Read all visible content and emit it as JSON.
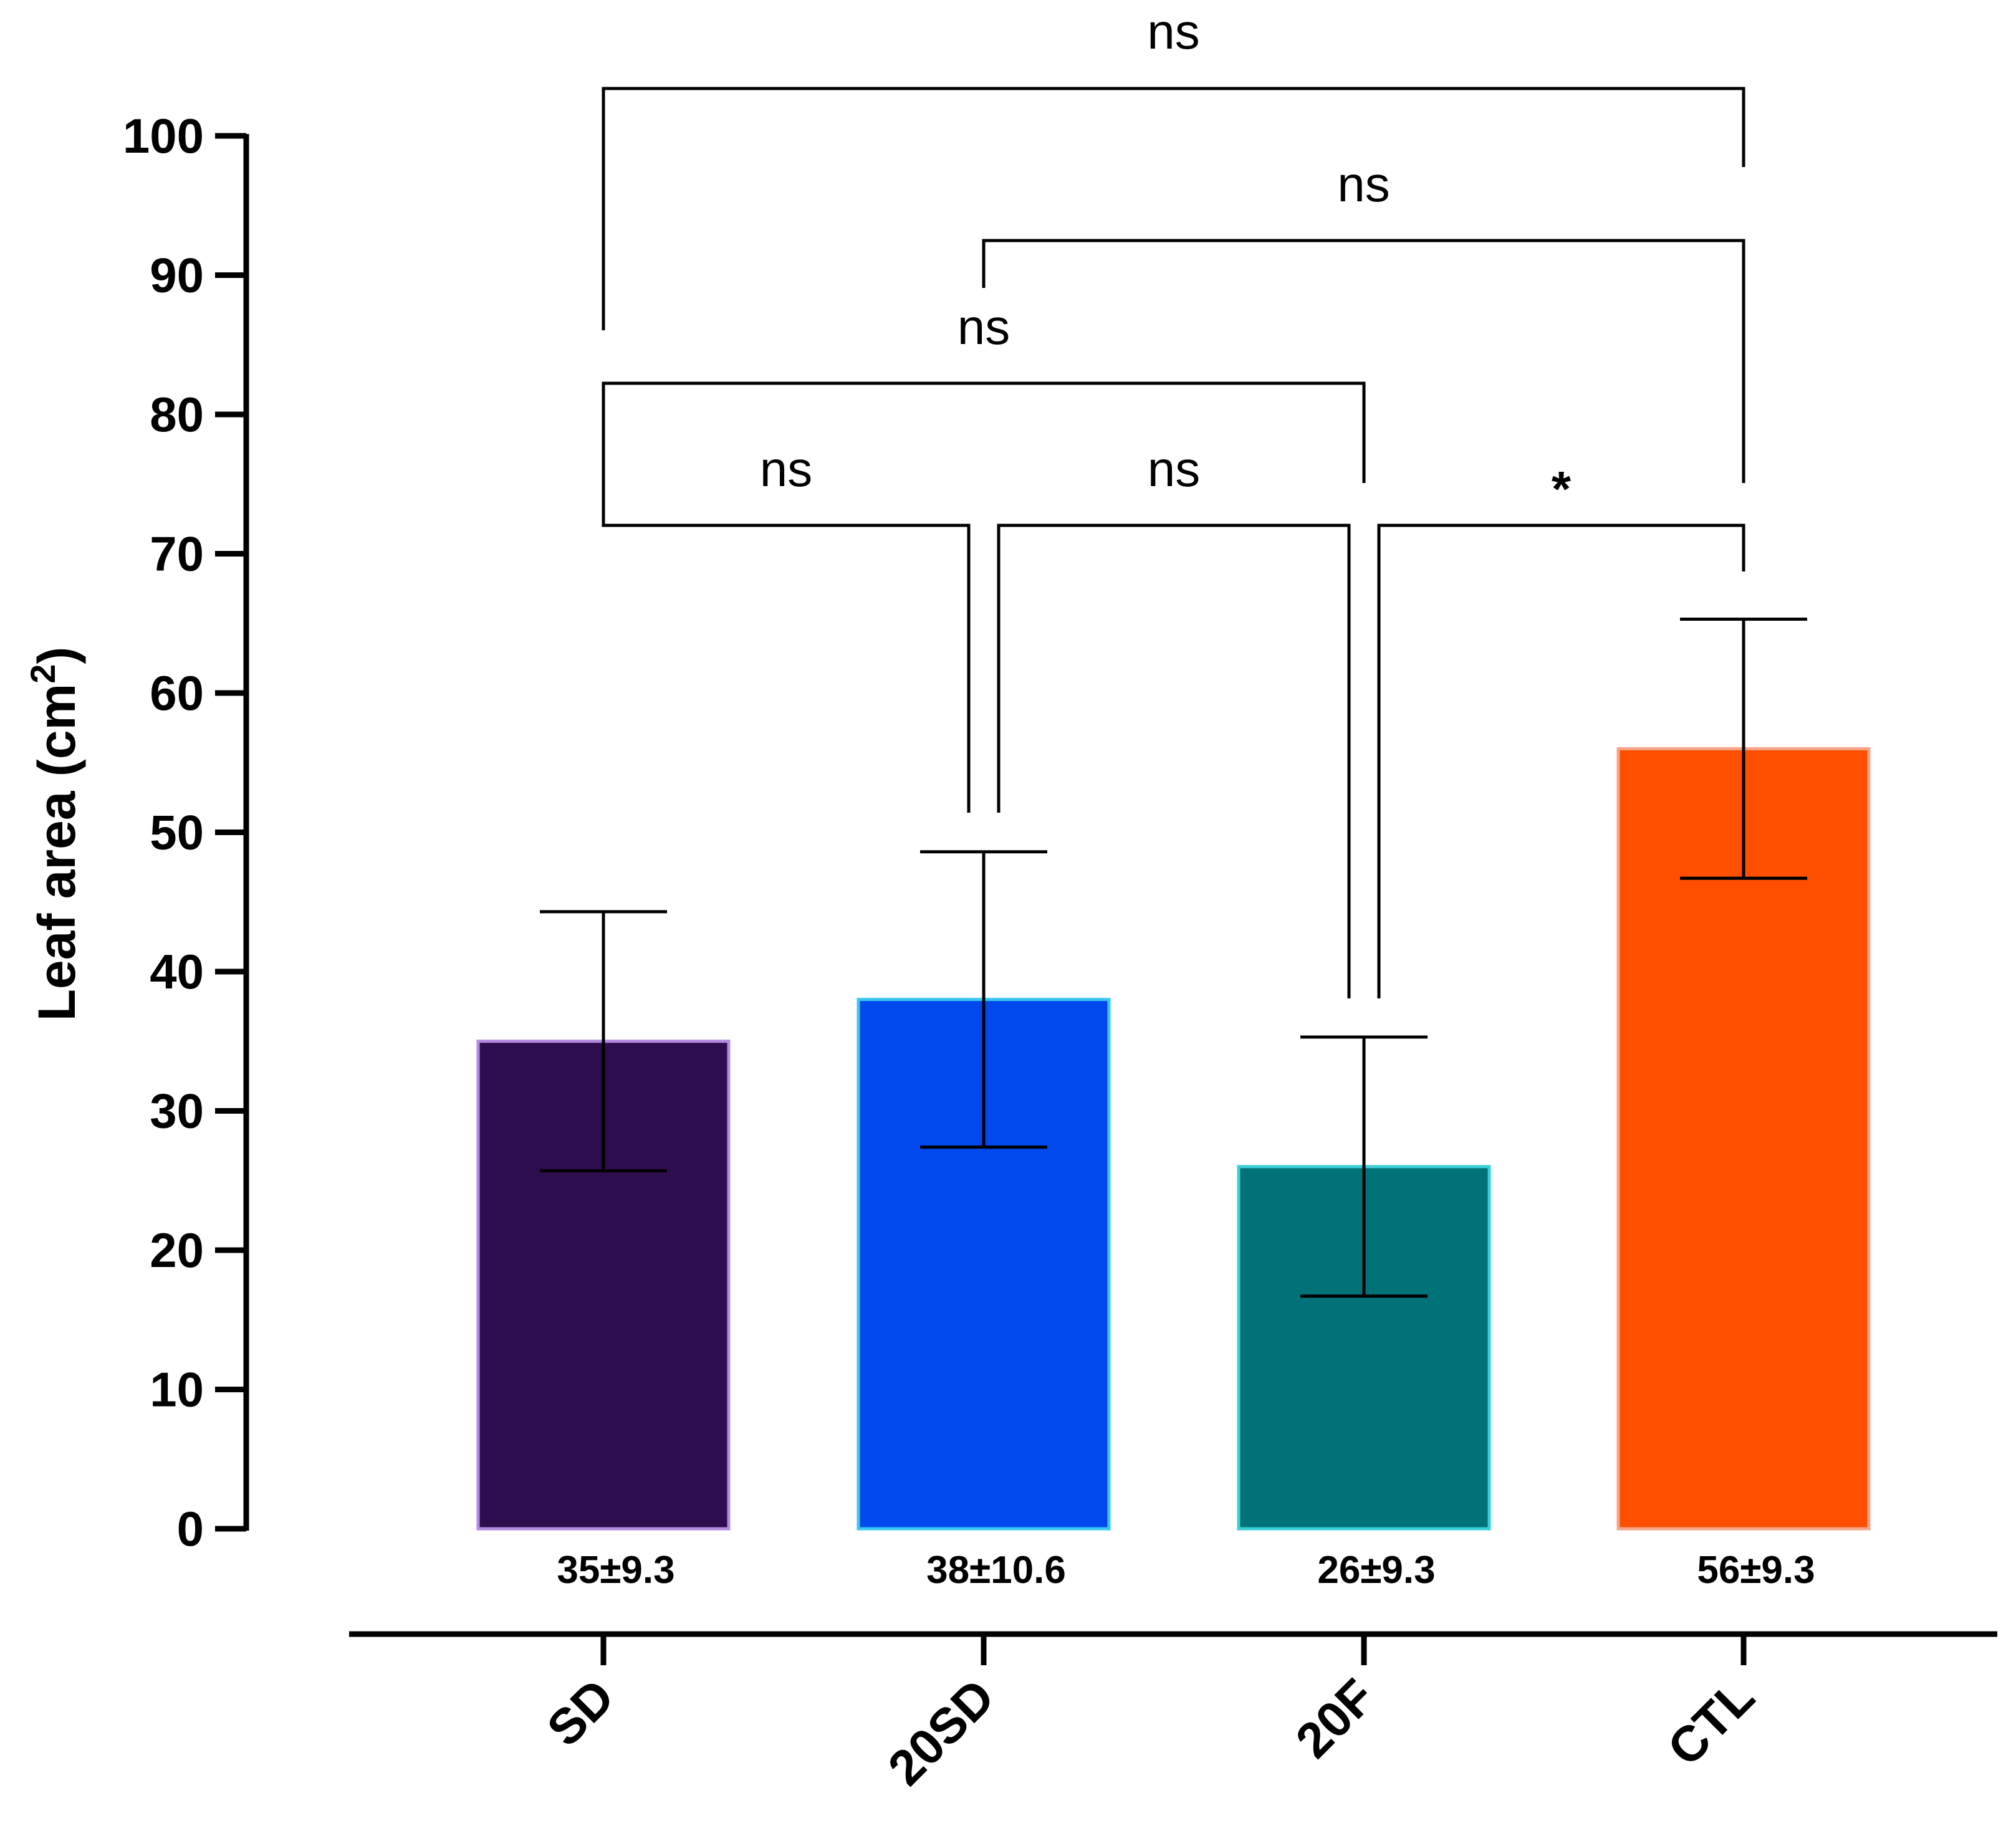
{
  "chart_data": {
    "type": "bar",
    "title": "",
    "xlabel": "",
    "ylabel": "Leaf area (cm",
    "ylabel_superscript": "2",
    "ylabel_close": ")",
    "ylim": [
      0,
      100
    ],
    "yticks": [
      0,
      10,
      20,
      30,
      40,
      50,
      60,
      70,
      80,
      90,
      100
    ],
    "categories": [
      "SD",
      "20SD",
      "20F",
      "CTL"
    ],
    "values": [
      35,
      38,
      26,
      56
    ],
    "errors": [
      9.3,
      10.6,
      9.3,
      9.3
    ],
    "value_labels": [
      "35±9.3",
      "38±10.6",
      "26±9.3",
      "56±9.3"
    ],
    "colors": [
      "#2e0d4f",
      "#0149ed",
      "#007278",
      "#fe4f00"
    ],
    "edge_colors": [
      "#b48ae0",
      "#39c9f0",
      "#3ad0d8",
      "#f5a488"
    ],
    "significance": [
      {
        "from": "SD",
        "to": "CTL",
        "label": "ns"
      },
      {
        "from": "20SD",
        "to": "CTL",
        "label": "ns"
      },
      {
        "from": "SD",
        "to": "20F",
        "label": "ns"
      },
      {
        "from": "SD",
        "to": "20SD",
        "label": "ns"
      },
      {
        "from": "20SD",
        "to": "20F",
        "label": "ns"
      },
      {
        "from": "20F",
        "to": "CTL",
        "label": "*"
      }
    ]
  }
}
